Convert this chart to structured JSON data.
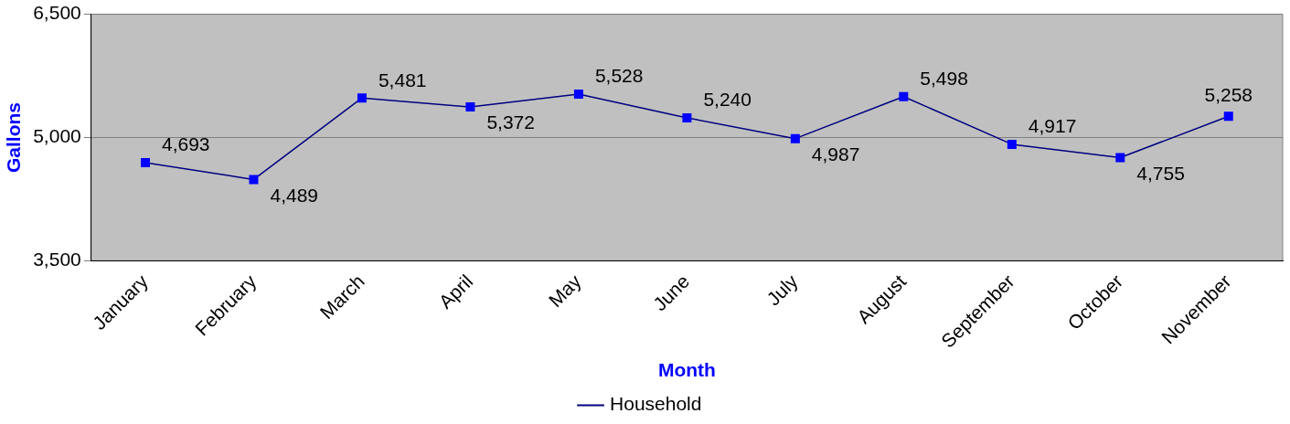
{
  "chart_data": {
    "type": "line",
    "xlabel": "Month",
    "ylabel": "Gallons",
    "categories": [
      "January",
      "February",
      "March",
      "April",
      "May",
      "June",
      "July",
      "August",
      "September",
      "October",
      "November"
    ],
    "series": [
      {
        "name": "Household",
        "color": "#000080",
        "values": [
          4693,
          4489,
          5481,
          5372,
          5528,
          5240,
          4987,
          5498,
          4917,
          4755,
          5258
        ],
        "value_labels": [
          "4,693",
          "4,489",
          "5,481",
          "5,372",
          "5,528",
          "5,240",
          "4,987",
          "5,498",
          "4,917",
          "4,755",
          "5,258"
        ]
      }
    ],
    "ylim": [
      3500,
      6500
    ],
    "yticks": [
      {
        "value": 3500,
        "label": "3,500"
      },
      {
        "value": 5000,
        "label": "5,000"
      },
      {
        "value": 6500,
        "label": "6,500"
      }
    ],
    "grid": "y",
    "legend": "bottom",
    "marker": "square",
    "line_style": "solid"
  }
}
